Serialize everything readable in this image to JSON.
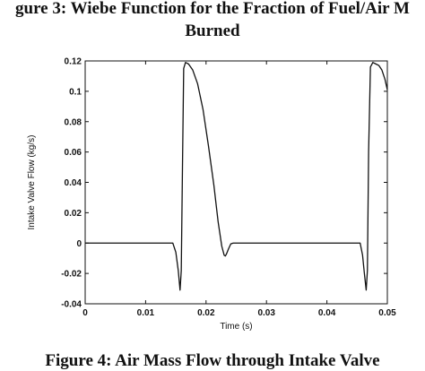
{
  "captions": {
    "top_line1": "gure 3: Wiebe Function for the Fraction of Fuel/Air M",
    "top_line2": "Burned",
    "bottom": "Figure 4:  Air Mass Flow through Intake Valve"
  },
  "chart_data": {
    "type": "line",
    "xlabel": "Time (s)",
    "ylabel": "Intake Valve Flow (kg/s)",
    "xlim": [
      0,
      0.05
    ],
    "ylim": [
      -0.04,
      0.12
    ],
    "x_ticks": [
      "0",
      "0.01",
      "0.02",
      "0.03",
      "0.04",
      "0.05"
    ],
    "y_ticks": [
      "-0.04",
      "-0.02",
      "0",
      "0.02",
      "0.04",
      "0.06",
      "0.08",
      "0.1",
      "0.12"
    ],
    "grid": false,
    "series": [
      {
        "color": "#111111",
        "x": [
          0,
          0.0145,
          0.015,
          0.0154,
          0.0157,
          0.0159,
          0.0161,
          0.0163,
          0.0166,
          0.0171,
          0.0178,
          0.0186,
          0.0195,
          0.0204,
          0.0213,
          0.022,
          0.0226,
          0.023,
          0.0232,
          0.0234,
          0.0237,
          0.0241,
          0.0245,
          0.0455,
          0.0459,
          0.0462,
          0.0465,
          0.0467,
          0.0469,
          0.0472,
          0.0476,
          0.0481,
          0.0486,
          0.0491,
          0.0496,
          0.05
        ],
        "y": [
          0,
          0,
          -0.006,
          -0.018,
          -0.031,
          -0.018,
          0.05,
          0.115,
          0.119,
          0.118,
          0.114,
          0.105,
          0.088,
          0.064,
          0.038,
          0.014,
          -0.002,
          -0.008,
          -0.0085,
          -0.007,
          -0.004,
          -0.0005,
          0,
          0,
          -0.008,
          -0.02,
          -0.031,
          -0.018,
          0.06,
          0.116,
          0.119,
          0.118,
          0.117,
          0.114,
          0.108,
          0.101
        ]
      }
    ]
  }
}
